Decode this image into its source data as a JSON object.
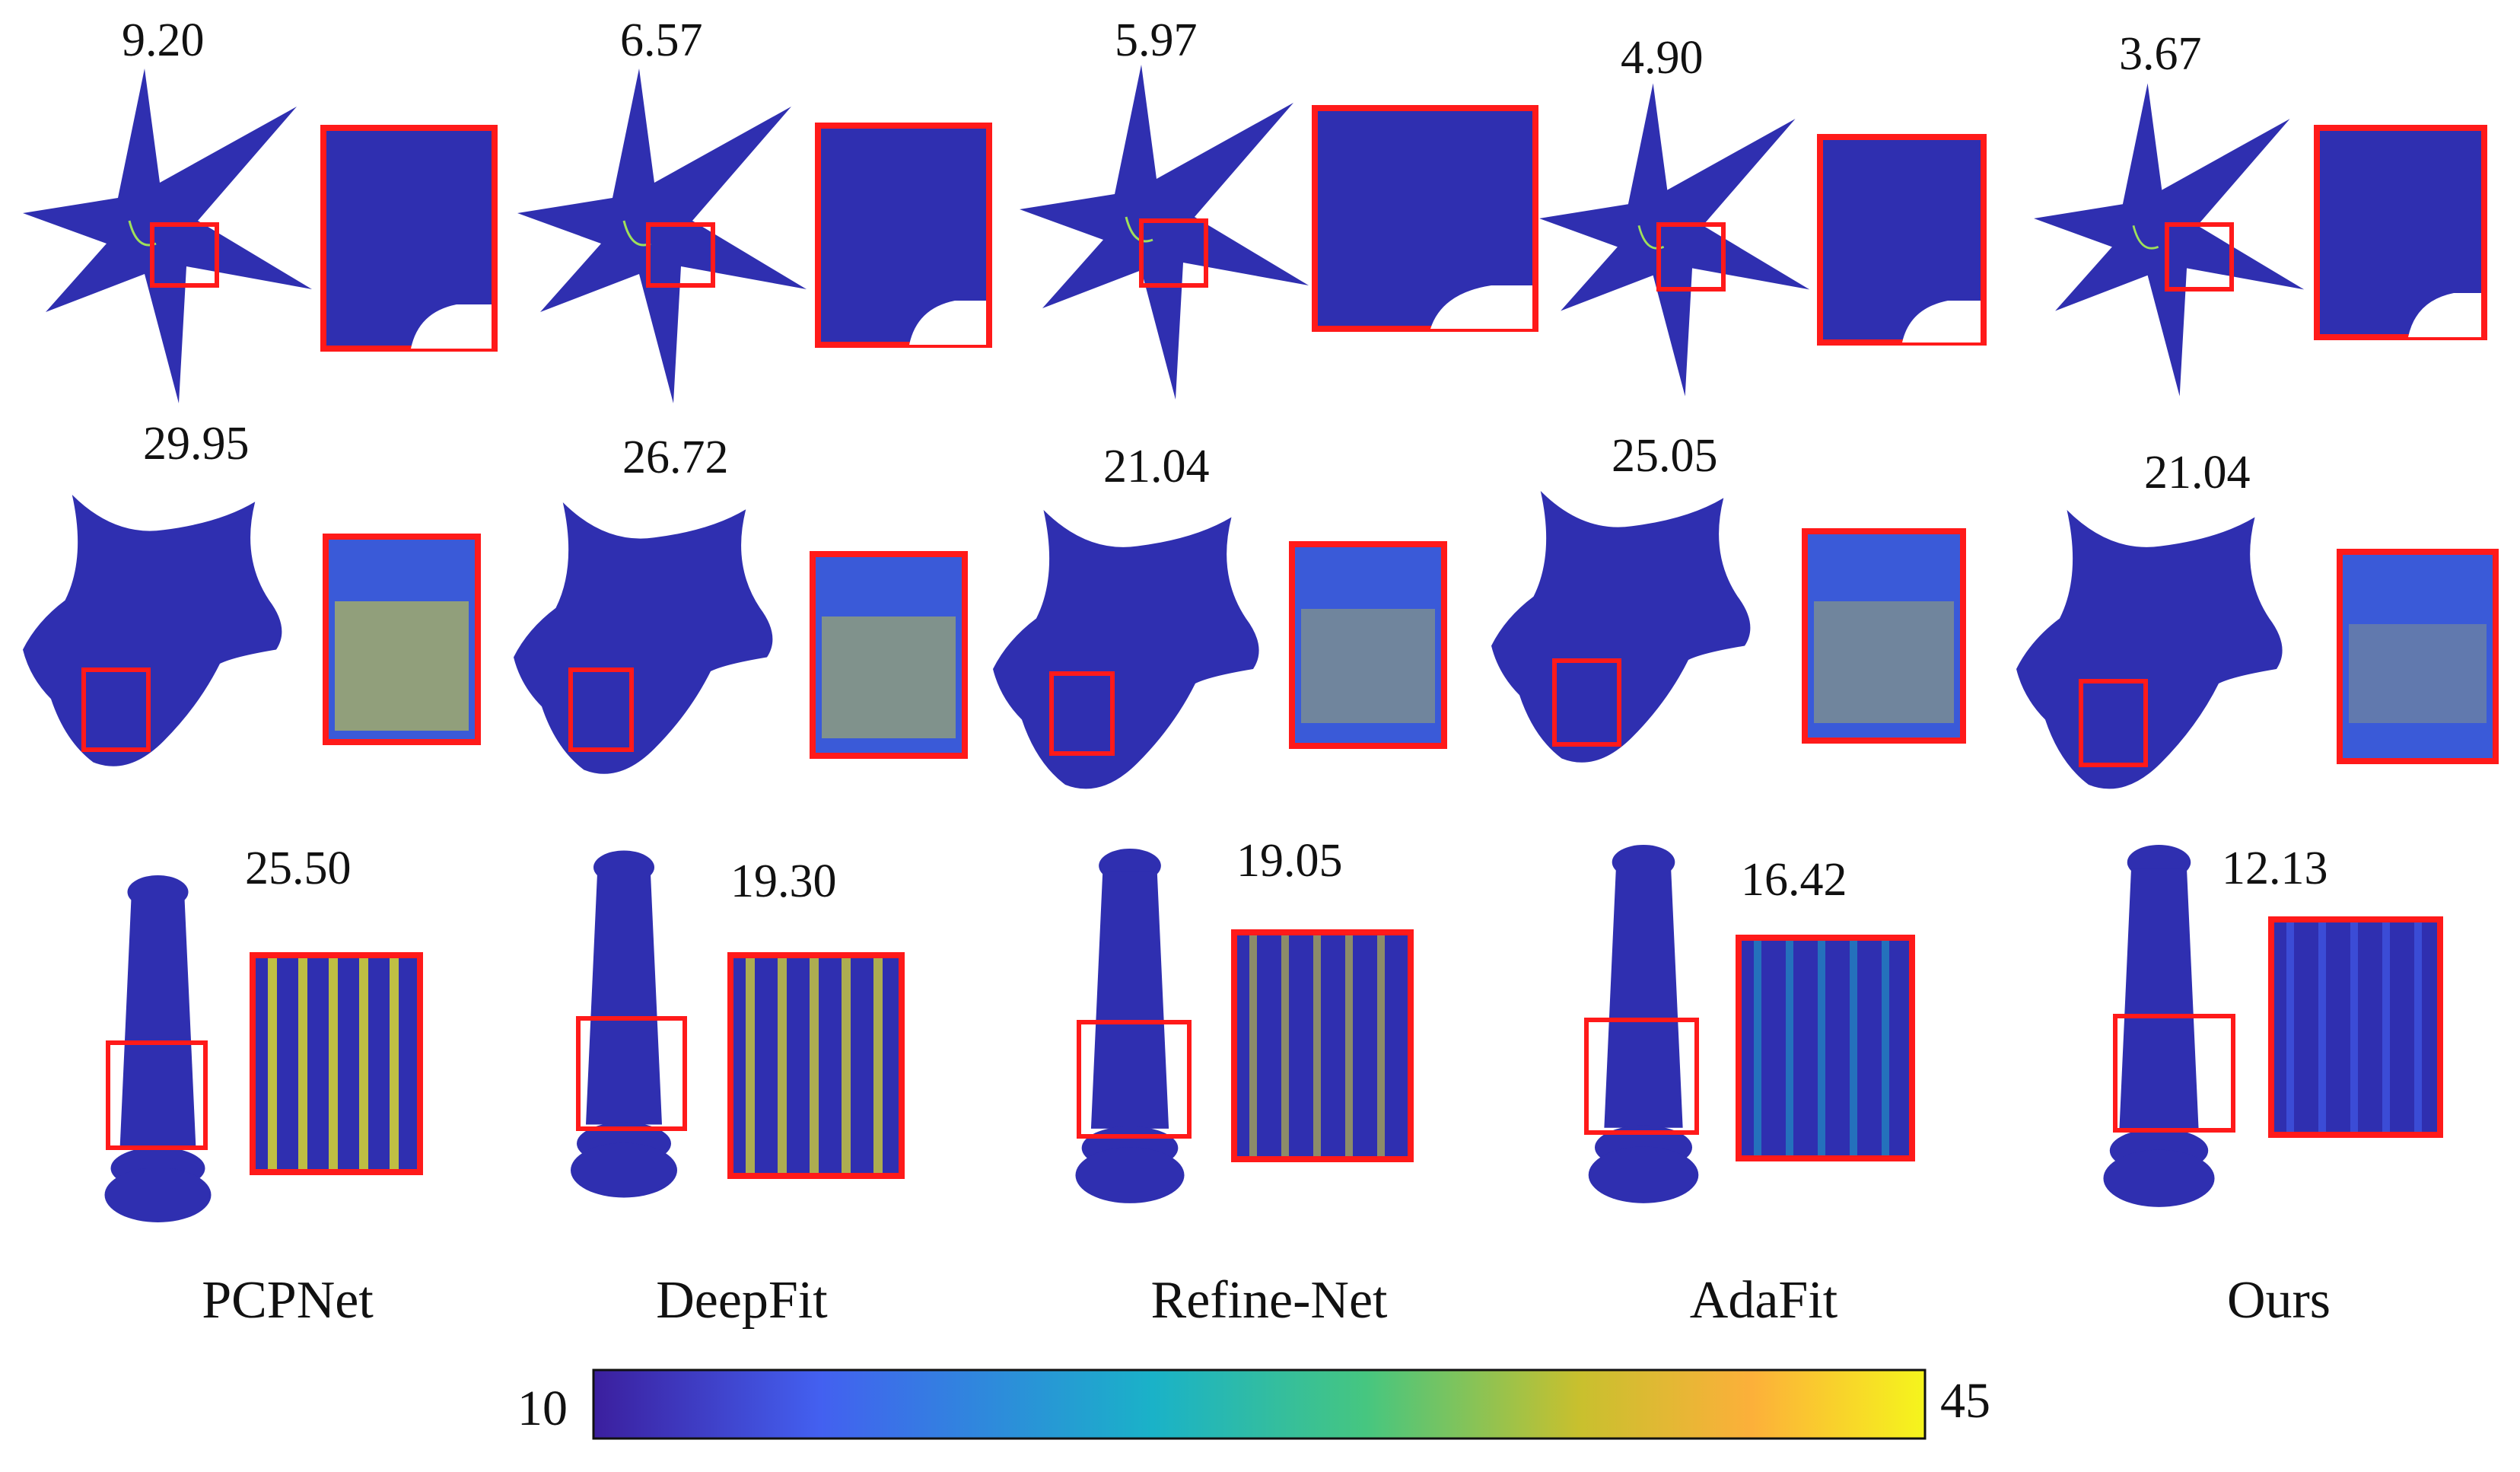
{
  "methods": [
    "PCPNet",
    "DeepFit",
    "Refine-Net",
    "AdaFit",
    "Ours"
  ],
  "rows": [
    {
      "object": "star",
      "scores": [
        "9.20",
        "6.57",
        "5.97",
        "4.90",
        "3.67"
      ]
    },
    {
      "object": "capital",
      "scores": [
        "29.95",
        "26.72",
        "21.04",
        "25.05",
        "21.04"
      ]
    },
    {
      "object": "column",
      "scores": [
        "25.50",
        "19.30",
        "19.05",
        "16.42",
        "12.13"
      ]
    }
  ],
  "colorbar": {
    "min": "10",
    "max": "45",
    "colors": [
      "#3b1f9e",
      "#4360f0",
      "#1ab2c8",
      "#46c680",
      "#c8c02e",
      "#fcb03a",
      "#f5f51c"
    ]
  },
  "colors": {
    "highlight_box": "#ff1a1a",
    "point_base": "#2f2fb0"
  }
}
